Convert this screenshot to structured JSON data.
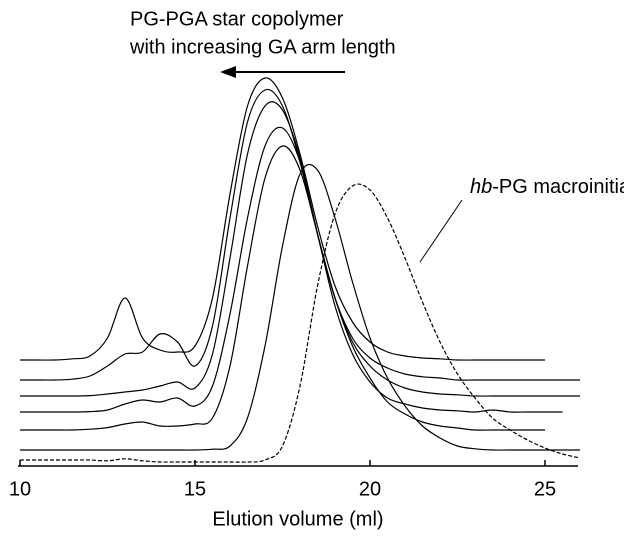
{
  "chart_data": {
    "type": "line",
    "annotations": [
      {
        "text": "PG-PGA star copolymer"
      },
      {
        "text": "with increasing GA arm length"
      },
      {
        "italic": "hb",
        "text": "-PG macroinitiator"
      }
    ],
    "x_label": "Elution volume (ml)",
    "xlim": [
      10,
      26
    ],
    "xticks": [
      10,
      15,
      20,
      25
    ],
    "ylim": [
      0,
      100
    ],
    "x": [
      10,
      10.5,
      11,
      11.5,
      12,
      12.5,
      13,
      13.5,
      14,
      14.5,
      15,
      15.5,
      16,
      16.5,
      17,
      17.5,
      18,
      18.5,
      19,
      19.5,
      20,
      20.5,
      21,
      21.5,
      22,
      22.5,
      23,
      23.5,
      24,
      24.5,
      25,
      25.5,
      26
    ],
    "series": [
      {
        "color": "#000000",
        "style": "solid",
        "values": [
          26.5,
          26.5,
          26.5,
          26.8,
          27.5,
          32,
          42,
          32,
          29,
          28.5,
          30,
          42,
          68,
          90,
          97,
          92,
          78,
          60,
          45,
          36,
          31,
          28.5,
          27.5,
          27,
          26.8,
          26.5,
          26.5,
          26.5,
          26.5,
          26.5,
          26.5,
          null,
          null
        ]
      },
      {
        "color": "#000000",
        "style": "solid",
        "values": [
          21.5,
          21.5,
          21.5,
          21.7,
          22.5,
          25,
          28,
          28.5,
          33,
          31,
          25,
          35,
          62,
          86,
          94,
          90,
          76,
          58,
          42,
          32,
          27,
          24.5,
          23,
          22.3,
          22,
          21.5,
          21.5,
          21.5,
          21.5,
          21.5,
          21.5,
          21.5,
          21.5
        ]
      },
      {
        "color": "#000000",
        "style": "solid",
        "values": [
          17.5,
          17.5,
          17.5,
          17.5,
          17.6,
          18,
          18.5,
          19,
          20,
          21,
          19.5,
          28,
          52,
          78,
          90,
          89,
          77,
          58,
          42,
          31,
          25,
          21.5,
          19.5,
          18.5,
          18,
          17.8,
          17.5,
          17.5,
          17.5,
          17.5,
          17.5,
          17.5,
          17.5
        ]
      },
      {
        "color": "#000000",
        "style": "solid",
        "values": [
          13.5,
          13.5,
          13.5,
          13.5,
          13.6,
          14,
          15.5,
          16.5,
          16,
          17,
          15,
          20,
          38,
          62,
          80,
          84.5,
          76,
          58,
          40,
          28,
          21,
          17,
          15.5,
          14.5,
          14,
          13.8,
          13.5,
          14,
          13.5,
          13.5,
          13.5,
          13.5,
          null
        ]
      },
      {
        "color": "#000000",
        "style": "solid",
        "values": [
          9,
          9,
          9,
          9,
          9.2,
          9.6,
          10.5,
          11,
          10,
          10,
          10.5,
          12,
          25,
          50,
          72,
          80,
          74,
          58,
          42,
          30,
          22,
          16,
          13,
          11,
          10,
          9.5,
          9,
          9,
          9,
          9,
          9,
          null,
          null
        ]
      },
      {
        "color": "#000000",
        "style": "solid",
        "values": [
          4,
          4,
          4,
          4,
          4,
          4,
          4,
          4,
          4,
          4,
          4,
          4.2,
          5,
          12,
          30,
          55,
          73,
          74,
          62,
          46,
          32,
          22,
          15,
          10,
          7,
          5,
          4.3,
          4,
          4,
          4,
          4,
          4,
          4
        ]
      },
      {
        "color": "#000000",
        "style": "dashed",
        "values": [
          1.5,
          1.5,
          1.5,
          1.5,
          1.5,
          1.3,
          1.8,
          1.3,
          1,
          1,
          1,
          1,
          1,
          1,
          1.5,
          5,
          20,
          45,
          63,
          70,
          69,
          62,
          52,
          41,
          31,
          23,
          17,
          12,
          9,
          6.5,
          4.5,
          3,
          2
        ]
      }
    ]
  }
}
